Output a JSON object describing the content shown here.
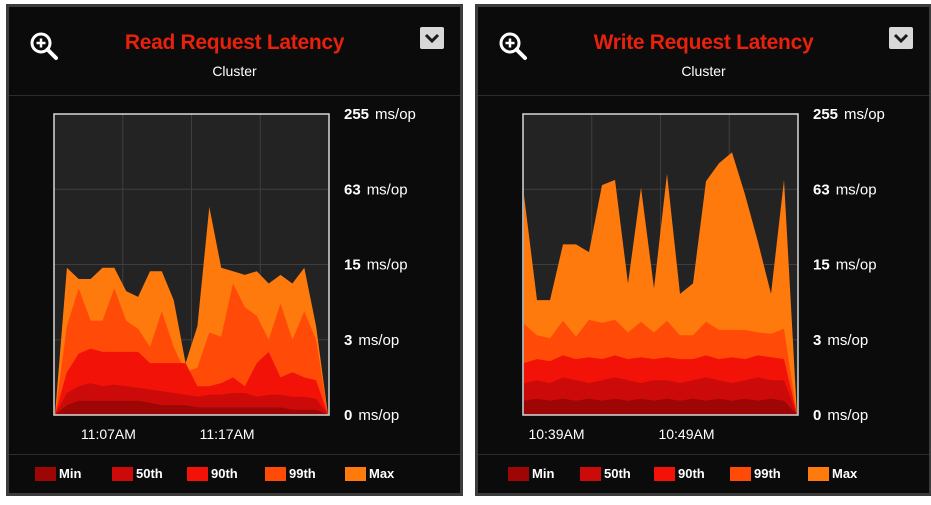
{
  "colors": {
    "min": "#9e0606",
    "p50": "#cc0a0a",
    "p90": "#f21208",
    "p99": "#ff4a08",
    "max": "#ff7a0c",
    "title": "#e8210c",
    "plot_bg": "#232323",
    "grid": "#3e3e3e"
  },
  "icons": {
    "zoom": "zoom-in-icon",
    "dropdown": "chevron-down-icon"
  },
  "legend": [
    "Min",
    "50th",
    "90th",
    "99th",
    "Max"
  ],
  "y_tick_labels": [
    {
      "num": "255",
      "unit": "ms/op"
    },
    {
      "num": "63",
      "unit": "ms/op"
    },
    {
      "num": "15",
      "unit": "ms/op"
    },
    {
      "num": "3",
      "unit": "ms/op"
    },
    {
      "num": "0",
      "unit": "ms/op"
    }
  ],
  "panels": [
    {
      "title": "Read Request Latency",
      "subtitle": "Cluster",
      "chart_data": {
        "type": "area",
        "title": "Read Request Latency",
        "subtitle": "Cluster",
        "scale": "log",
        "ylim": [
          0,
          255
        ],
        "y_ticks": [
          0,
          3,
          15,
          63,
          255
        ],
        "y_tick_labels": [
          "0 ms/op",
          "3 ms/op",
          "15 ms/op",
          "63 ms/op",
          "255 ms/op"
        ],
        "x_labels": [
          {
            "label": "11:07AM",
            "index": 4.5
          },
          {
            "label": "11:17AM",
            "index": 14.5
          }
        ],
        "legend": "bottom",
        "series": [
          {
            "name": "Min",
            "values": [
              0,
              0.2,
              0.3,
              0.3,
              0.3,
              0.3,
              0.3,
              0.3,
              0.25,
              0.2,
              0.2,
              0.2,
              0.15,
              0.15,
              0.15,
              0.15,
              0.15,
              0.15,
              0.15,
              0.15,
              0.1,
              0.1,
              0.1,
              0
            ]
          },
          {
            "name": "50th",
            "values": [
              0,
              0.5,
              0.7,
              0.8,
              0.7,
              0.75,
              0.7,
              0.65,
              0.6,
              0.55,
              0.5,
              0.45,
              0.4,
              0.45,
              0.45,
              0.5,
              0.5,
              0.4,
              0.45,
              0.45,
              0.4,
              0.4,
              0.35,
              0
            ]
          },
          {
            "name": "90th",
            "values": [
              0,
              1.2,
              2.1,
              2.4,
              2.2,
              2.2,
              2.2,
              2.2,
              1.6,
              1.6,
              1.6,
              1.6,
              0.7,
              0.7,
              0.8,
              1.0,
              0.7,
              1.6,
              2.2,
              1.0,
              1.2,
              1.0,
              0.9,
              0
            ]
          },
          {
            "name": "99th",
            "values": [
              0,
              4,
              9,
              4.5,
              4.5,
              9,
              4.5,
              3.8,
              2.5,
              5.5,
              2.5,
              1.2,
              1.4,
              3.5,
              3.2,
              10,
              6,
              5,
              3,
              6.5,
              3,
              5.5,
              3,
              0
            ]
          },
          {
            "name": "Max",
            "values": [
              0,
              14,
              11,
              11,
              14,
              14,
              8.5,
              7.5,
              13,
              13,
              7,
              1.6,
              4,
              45,
              14,
              13,
              12,
              13,
              10,
              12,
              10,
              14,
              4,
              0
            ]
          }
        ]
      }
    },
    {
      "title": "Write Request Latency",
      "subtitle": "Cluster",
      "chart_data": {
        "type": "area",
        "title": "Write Request Latency",
        "subtitle": "Cluster",
        "scale": "log",
        "ylim": [
          0,
          255
        ],
        "y_ticks": [
          0,
          3,
          15,
          63,
          255
        ],
        "y_tick_labels": [
          "0 ms/op",
          "3 ms/op",
          "15 ms/op",
          "63 ms/op",
          "255 ms/op"
        ],
        "x_labels": [
          {
            "label": "10:39AM",
            "index": 2.5
          },
          {
            "label": "10:49AM",
            "index": 12.5
          }
        ],
        "legend": "bottom",
        "series": [
          {
            "name": "Min",
            "values": [
              0.3,
              0.35,
              0.3,
              0.35,
              0.3,
              0.35,
              0.3,
              0.35,
              0.3,
              0.35,
              0.3,
              0.35,
              0.3,
              0.35,
              0.3,
              0.35,
              0.3,
              0.35,
              0.3,
              0.35,
              0.3,
              0
            ]
          },
          {
            "name": "50th",
            "values": [
              0.8,
              0.9,
              0.8,
              1.0,
              0.9,
              0.8,
              0.9,
              1.0,
              0.9,
              0.8,
              0.9,
              0.9,
              0.8,
              0.9,
              1.0,
              0.9,
              0.8,
              0.9,
              1.0,
              0.9,
              0.9,
              0
            ]
          },
          {
            "name": "90th",
            "values": [
              1.6,
              1.8,
              1.7,
              2.0,
              1.8,
              1.9,
              1.8,
              2.0,
              1.8,
              1.9,
              1.8,
              1.9,
              1.8,
              1.8,
              2.0,
              1.8,
              1.9,
              1.8,
              2.0,
              1.9,
              1.8,
              0
            ]
          },
          {
            "name": "99th",
            "values": [
              4.2,
              3.3,
              3.1,
              4.5,
              3.2,
              4.6,
              4.3,
              4.6,
              3.5,
              4.4,
              3.5,
              4.5,
              3.3,
              3.3,
              4.4,
              3.7,
              3.7,
              3.7,
              3.5,
              3.4,
              3.8,
              0
            ]
          },
          {
            "name": "Max",
            "values": [
              56,
              7,
              7,
              22,
              22,
              19,
              68,
              75,
              10,
              65,
              9,
              84,
              8,
              10,
              73,
              102,
              125,
              57,
              23,
              8,
              75,
              0
            ]
          }
        ]
      }
    }
  ]
}
